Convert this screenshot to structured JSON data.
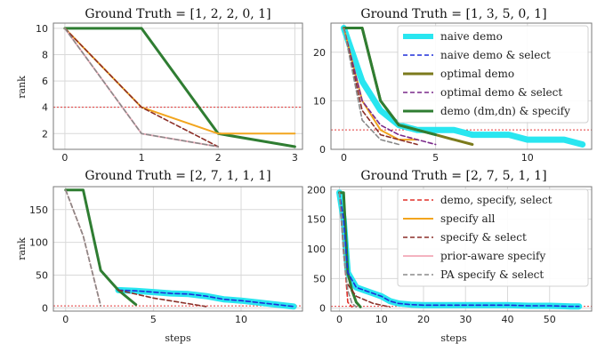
{
  "colors": {
    "naive_demo": "#29e6f0",
    "naive_demo_select": "#1f2fd8",
    "optimal_demo": "#7b7a1c",
    "optimal_demo_select": "#7a2a8a",
    "demo_specify": "#2f7d32",
    "demo_specify_select": "#e0302a",
    "specify_all": "#f2a51e",
    "specify_select": "#8b2f28",
    "prior_aware_specify": "#f4b3c0",
    "pa_specify_select": "#8a8a8a",
    "reference": "#e23a3a"
  },
  "legend": [
    {
      "label": "naive demo",
      "key": "naive_demo"
    },
    {
      "label": "naive demo & select",
      "key": "naive_demo_select"
    },
    {
      "label": "optimal demo",
      "key": "optimal_demo"
    },
    {
      "label": "optimal demo & select",
      "key": "optimal_demo_select"
    },
    {
      "label": "demo (dm,dn) & specify",
      "key": "demo_specify"
    },
    {
      "label": "demo, specify, select",
      "key": "demo_specify_select"
    },
    {
      "label": "specify all",
      "key": "specify_all"
    },
    {
      "label": "specify & select",
      "key": "specify_select"
    },
    {
      "label": "prior-aware specify",
      "key": "prior_aware_specify"
    },
    {
      "label": "PA specify & select",
      "key": "pa_specify_select"
    }
  ],
  "chart_data": [
    {
      "type": "line",
      "title": "Ground Truth = [1, 2, 2, 0, 1]",
      "xlabel": "",
      "ylabel": "rank",
      "xlim": [
        -0.15,
        3.1
      ],
      "ylim": [
        0.8,
        10.4
      ],
      "xticks": [
        0,
        1,
        2,
        3
      ],
      "yticks": [
        2,
        4,
        6,
        8,
        10
      ],
      "reference_y": 4,
      "series": [
        {
          "key": "demo_specify",
          "x": [
            0,
            1,
            2,
            3
          ],
          "y": [
            10,
            10,
            2,
            1
          ]
        },
        {
          "key": "specify_all",
          "x": [
            0,
            1,
            2,
            3
          ],
          "y": [
            10,
            4,
            2,
            2
          ]
        },
        {
          "key": "specify_select",
          "x": [
            0,
            1,
            2
          ],
          "y": [
            10,
            4,
            1
          ]
        },
        {
          "key": "prior_aware_specify",
          "x": [
            0,
            1,
            2
          ],
          "y": [
            10,
            2,
            1
          ]
        },
        {
          "key": "pa_specify_select",
          "x": [
            0,
            1,
            2
          ],
          "y": [
            10,
            2,
            1
          ]
        }
      ]
    },
    {
      "type": "line",
      "title": "Ground Truth = [1, 3, 5, 0, 1]",
      "xlabel": "",
      "ylabel": "",
      "xlim": [
        -0.7,
        13.5
      ],
      "ylim": [
        0,
        26
      ],
      "xticks": [
        0,
        5,
        10
      ],
      "yticks": [
        0,
        10,
        20
      ],
      "reference_y": 4,
      "legend_items": [
        0,
        1,
        2,
        3,
        4
      ],
      "series": [
        {
          "key": "naive_demo",
          "x": [
            0,
            1,
            2,
            3,
            4,
            5,
            6,
            7,
            8,
            9,
            10,
            11,
            12,
            13
          ],
          "y": [
            25,
            14,
            8,
            5,
            4,
            4,
            4,
            3,
            3,
            3,
            2,
            2,
            2,
            1
          ]
        },
        {
          "key": "optimal_demo",
          "x": [
            0,
            1,
            2,
            3,
            4,
            5,
            6,
            7
          ],
          "y": [
            25,
            25,
            10,
            5,
            4,
            3,
            2,
            1
          ]
        },
        {
          "key": "demo_specify",
          "x": [
            0,
            1,
            2,
            3,
            4,
            5
          ],
          "y": [
            25,
            25,
            10,
            5,
            4,
            3
          ]
        },
        {
          "key": "specify_all",
          "x": [
            0,
            1,
            2,
            3,
            4
          ],
          "y": [
            25,
            10,
            4,
            2,
            2
          ]
        },
        {
          "key": "specify_select",
          "x": [
            0,
            1,
            2,
            3,
            4
          ],
          "y": [
            25,
            8,
            3,
            2,
            1
          ]
        },
        {
          "key": "pa_specify_select",
          "x": [
            0,
            1,
            2,
            3
          ],
          "y": [
            25,
            6,
            2,
            1
          ]
        },
        {
          "key": "optimal_demo_select",
          "x": [
            0,
            1,
            2,
            3,
            4,
            5
          ],
          "y": [
            25,
            10,
            5,
            3,
            2,
            1
          ]
        }
      ]
    },
    {
      "type": "line",
      "title": "Ground Truth = [2, 7, 1, 1, 1]",
      "xlabel": "steps",
      "ylabel": "rank",
      "xlim": [
        -0.7,
        13.5
      ],
      "ylim": [
        -5,
        185
      ],
      "xticks": [
        0,
        5,
        10
      ],
      "yticks": [
        0,
        50,
        100,
        150
      ],
      "reference_y": 3,
      "series": [
        {
          "key": "naive_demo",
          "x": [
            3,
            4,
            5,
            6,
            7,
            8,
            9,
            10,
            11,
            12,
            13
          ],
          "y": [
            27,
            26,
            24,
            22,
            21,
            18,
            13,
            11,
            8,
            5,
            2
          ]
        },
        {
          "key": "naive_demo_select",
          "x": [
            3,
            4,
            5,
            6,
            7,
            8,
            9,
            10,
            11,
            12,
            13
          ],
          "y": [
            27,
            26,
            24,
            22,
            21,
            18,
            13,
            11,
            8,
            5,
            2
          ]
        },
        {
          "key": "demo_specify",
          "x": [
            0,
            1,
            2,
            3,
            4
          ],
          "y": [
            180,
            180,
            57,
            27,
            5
          ]
        },
        {
          "key": "specify_select",
          "x": [
            3,
            5,
            8
          ],
          "y": [
            27,
            15,
            2
          ]
        },
        {
          "key": "demo_specify_select",
          "x": [
            0,
            1,
            2
          ],
          "y": [
            180,
            110,
            3
          ]
        },
        {
          "key": "pa_specify_select",
          "x": [
            0,
            1,
            2
          ],
          "y": [
            180,
            110,
            3
          ]
        }
      ]
    },
    {
      "type": "line",
      "title": "Ground Truth = [2, 7, 5, 1, 1]",
      "xlabel": "steps",
      "ylabel": "",
      "xlim": [
        -2,
        60
      ],
      "ylim": [
        -5,
        205
      ],
      "xticks": [
        0,
        10,
        20,
        30,
        40,
        50
      ],
      "yticks": [
        0,
        50,
        100,
        150,
        200
      ],
      "reference_y": 3,
      "legend_items": [
        5,
        6,
        7,
        8,
        9
      ],
      "series": [
        {
          "key": "naive_demo",
          "x": [
            0,
            1,
            2,
            4,
            6,
            8,
            10,
            12,
            14,
            17,
            20,
            25,
            30,
            35,
            40,
            45,
            50,
            55,
            57
          ],
          "y": [
            195,
            150,
            60,
            35,
            30,
            25,
            20,
            12,
            8,
            6,
            5,
            5,
            5,
            5,
            5,
            4,
            4,
            3,
            3
          ]
        },
        {
          "key": "naive_demo_select",
          "x": [
            0,
            1,
            2,
            4,
            6,
            8,
            10,
            12,
            14,
            17,
            20,
            25,
            30,
            35,
            40,
            45,
            50,
            55,
            57
          ],
          "y": [
            195,
            150,
            60,
            35,
            30,
            25,
            20,
            12,
            8,
            6,
            5,
            5,
            5,
            5,
            5,
            4,
            4,
            3,
            3
          ]
        },
        {
          "key": "demo_specify",
          "x": [
            0,
            1,
            2,
            3,
            4,
            5
          ],
          "y": [
            195,
            195,
            60,
            30,
            10,
            2
          ]
        },
        {
          "key": "specify_select",
          "x": [
            2,
            4,
            8,
            12
          ],
          "y": [
            40,
            20,
            8,
            2
          ]
        },
        {
          "key": "demo_specify_select",
          "x": [
            0,
            1,
            2,
            3
          ],
          "y": [
            195,
            100,
            10,
            2
          ]
        },
        {
          "key": "pa_specify_select",
          "x": [
            0,
            1,
            2,
            3,
            4
          ],
          "y": [
            195,
            90,
            30,
            8,
            2
          ]
        }
      ]
    }
  ]
}
